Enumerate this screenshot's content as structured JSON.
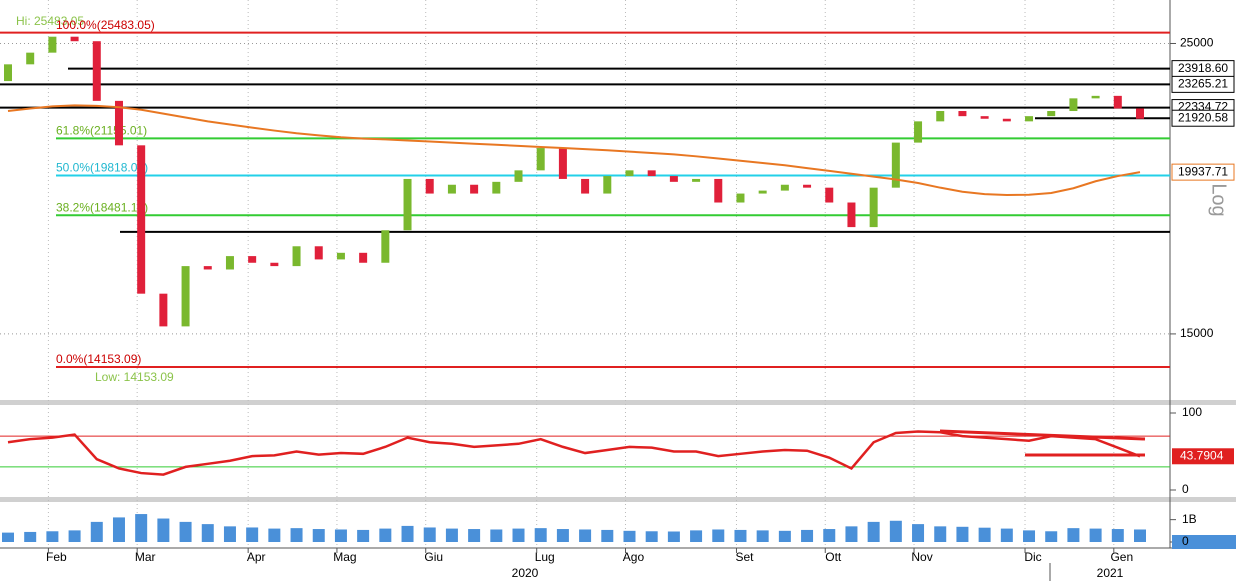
{
  "chart_data": [
    {
      "type": "candlestick",
      "log_scale": true,
      "scale_label": "Log",
      "hi_label": "Hi: 25483.05",
      "low_label": "Low: 14153.09",
      "up_color": "#7ab82e",
      "down_color": "#e0203a",
      "ylim": [
        13354,
        26987
      ],
      "yticks": [
        15000,
        25000
      ],
      "open": [
        23400,
        24100,
        24600,
        25300,
        25100,
        22600,
        20900,
        16100,
        15200,
        16900,
        16800,
        17200,
        17000,
        16900,
        17500,
        17100,
        17300,
        17000,
        18000,
        19700,
        19200,
        19500,
        19200,
        19600,
        20000,
        20800,
        19700,
        19200,
        19800,
        20000,
        19800,
        19600,
        19700,
        18900,
        19200,
        19300,
        19500,
        19400,
        18900,
        18100,
        19400,
        21000,
        21800,
        22200,
        22000,
        21900,
        21800,
        22000,
        22200,
        22700,
        22800,
        22300
      ],
      "close": [
        24100,
        24600,
        25300,
        25100,
        22600,
        20900,
        16100,
        15200,
        16900,
        16800,
        17200,
        17000,
        16900,
        17500,
        17100,
        17300,
        17000,
        18000,
        19700,
        19200,
        19500,
        19200,
        19600,
        20000,
        20800,
        19700,
        19200,
        19800,
        20000,
        19800,
        19600,
        19700,
        18900,
        19200,
        19300,
        19500,
        19400,
        18900,
        18100,
        19400,
        21000,
        21800,
        22200,
        22000,
        21900,
        21800,
        22000,
        22200,
        22700,
        22800,
        22300,
        21900
      ],
      "ma": {
        "color": "#e87722",
        "values": [
          22200,
          22300,
          22380,
          22420,
          22400,
          22350,
          22250,
          22100,
          21950,
          21800,
          21680,
          21560,
          21450,
          21350,
          21270,
          21200,
          21150,
          21120,
          21080,
          21040,
          21000,
          20960,
          20920,
          20880,
          20840,
          20800,
          20760,
          20720,
          20670,
          20620,
          20570,
          20500,
          20420,
          20340,
          20260,
          20180,
          20080,
          19980,
          19880,
          19780,
          19680,
          19560,
          19400,
          19260,
          19180,
          19150,
          19160,
          19220,
          19380,
          19620,
          19800,
          19937.71
        ]
      },
      "levels": [
        {
          "value": 25483.05,
          "color": "#e02020",
          "label": "100.0%(25483.05)"
        },
        {
          "value": 23918.6,
          "color": "#000000",
          "axis_label": "23918.60"
        },
        {
          "value": 23265.21,
          "color": "#000000",
          "axis_label": "23265.21"
        },
        {
          "value": 22334.72,
          "color": "#000000",
          "axis_label": "22334.72"
        },
        {
          "value": 21920.58,
          "color": "#000000",
          "axis_label": "21920.58"
        },
        {
          "value": 21155.01,
          "color": "#33cc33",
          "label": "61.8%(21155.01)"
        },
        {
          "value": 19818.07,
          "color": "#22d0e8",
          "label": "50.0%(19818.07)"
        },
        {
          "value": 18481.13,
          "color": "#33cc33",
          "label": "38.2%(18481.13)"
        },
        {
          "value": 17950,
          "color": "#000000"
        },
        {
          "value": 14153.09,
          "color": "#e02020",
          "label": "0.0%(14153.09)"
        }
      ]
    },
    {
      "type": "line",
      "color": "#e02020",
      "ylim": [
        0,
        100
      ],
      "yticks": [
        0,
        100
      ],
      "levels": [
        70,
        30
      ],
      "values": [
        62,
        66,
        68,
        72,
        40,
        28,
        22,
        20,
        30,
        34,
        38,
        44,
        45,
        50,
        46,
        48,
        47,
        56,
        68,
        62,
        60,
        56,
        58,
        60,
        66,
        56,
        48,
        52,
        56,
        55,
        50,
        50,
        44,
        47,
        50,
        52,
        51,
        42,
        28,
        62,
        74,
        76,
        75,
        70,
        68,
        66,
        64,
        70,
        68,
        66,
        55,
        43.7904
      ]
    },
    {
      "type": "bar",
      "color": "#4a90d9",
      "ylim": [
        0,
        1700000000
      ],
      "yticks": [
        {
          "value": 0,
          "label": "0"
        },
        {
          "value": 1000000000,
          "label": "1B"
        }
      ],
      "categories": [
        null,
        null,
        "Feb",
        null,
        null,
        null,
        "Mar",
        null,
        null,
        null,
        null,
        "Apr",
        null,
        null,
        null,
        "Mag",
        null,
        null,
        null,
        "Giu",
        null,
        null,
        null,
        null,
        "Lug",
        null,
        null,
        null,
        "Ago",
        null,
        null,
        null,
        null,
        "Set",
        null,
        null,
        null,
        "Ott",
        null,
        null,
        null,
        "Nov",
        null,
        null,
        null,
        null,
        "Dic",
        null,
        null,
        null,
        "Gen",
        null
      ],
      "years": [
        "2020",
        "2021"
      ],
      "values": [
        420000000,
        450000000,
        480000000,
        520000000,
        900000000,
        1100000000,
        1250000000,
        1050000000,
        900000000,
        800000000,
        700000000,
        650000000,
        600000000,
        620000000,
        580000000,
        560000000,
        540000000,
        600000000,
        720000000,
        650000000,
        600000000,
        580000000,
        560000000,
        600000000,
        620000000,
        580000000,
        560000000,
        540000000,
        500000000,
        480000000,
        470000000,
        520000000,
        560000000,
        540000000,
        520000000,
        500000000,
        540000000,
        580000000,
        700000000,
        900000000,
        950000000,
        800000000,
        700000000,
        680000000,
        640000000,
        600000000,
        520000000,
        480000000,
        620000000,
        600000000,
        580000000,
        560000000
      ]
    }
  ]
}
